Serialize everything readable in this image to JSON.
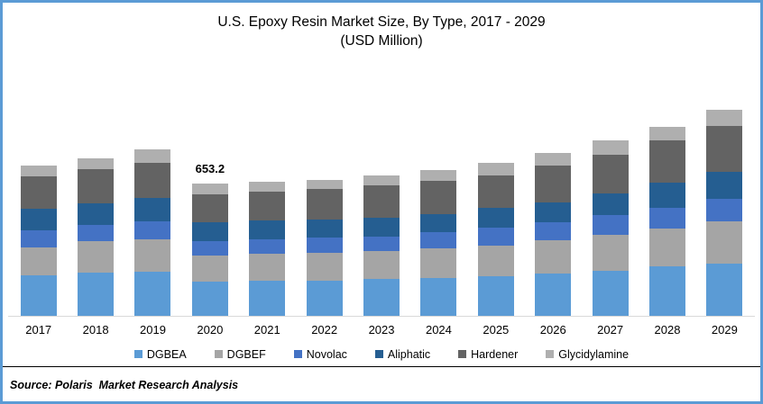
{
  "title": "U.S. Epoxy Resin Market Size, By Type, 2017 - 2029",
  "subtitle": "(USD Million)",
  "source": "Source: Polaris  Market Research Analysis",
  "style": {
    "frame_border_color": "#5B9BD5",
    "axis_line_color": "#D9D9D9",
    "separator_color": "#000000"
  },
  "chart_data": {
    "type": "bar",
    "stacked": true,
    "title": "U.S. Epoxy Resin Market Size, By Type, 2017 - 2029",
    "subtitle": "(USD Million)",
    "unit": "USD Million",
    "grid": false,
    "y_axis_visible": false,
    "legend_position": "bottom",
    "categories": [
      "2017",
      "2018",
      "2019",
      "2020",
      "2021",
      "2022",
      "2023",
      "2024",
      "2025",
      "2026",
      "2027",
      "2028",
      "2029"
    ],
    "series": [
      {
        "name": "DGBEA",
        "color": "#5B9BD5",
        "values": [
          199,
          211,
          217,
          168.0,
          171,
          173,
          180,
          185,
          196,
          207,
          222,
          243,
          259
        ]
      },
      {
        "name": "DGBEF",
        "color": "#A5A5A5",
        "values": [
          137,
          155,
          160,
          128.5,
          133,
          137,
          140,
          150,
          152,
          166,
          177,
          188,
          206
        ]
      },
      {
        "name": "Novolac",
        "color": "#4472C4",
        "values": [
          84,
          84,
          91,
          70.7,
          74,
          75,
          72,
          78,
          88,
          89,
          99,
          102,
          113
        ]
      },
      {
        "name": "Aliphatic",
        "color": "#255E91",
        "values": [
          108,
          104,
          115,
          94.3,
          94,
          90,
          93,
          90,
          96,
          99,
          104,
          125,
          133
        ]
      },
      {
        "name": "Hardener",
        "color": "#636363",
        "values": [
          159,
          170,
          173,
          139.2,
          141,
          150,
          158,
          164,
          162,
          182,
          191,
          206,
          225
        ]
      },
      {
        "name": "Glycidylamine",
        "color": "#AFAFAF",
        "values": [
          55,
          54,
          64,
          52.5,
          47,
          47,
          47,
          52,
          59,
          59,
          71,
          69,
          81
        ]
      }
    ],
    "annotations": [
      {
        "category": "2020",
        "text": "653.2"
      }
    ]
  }
}
